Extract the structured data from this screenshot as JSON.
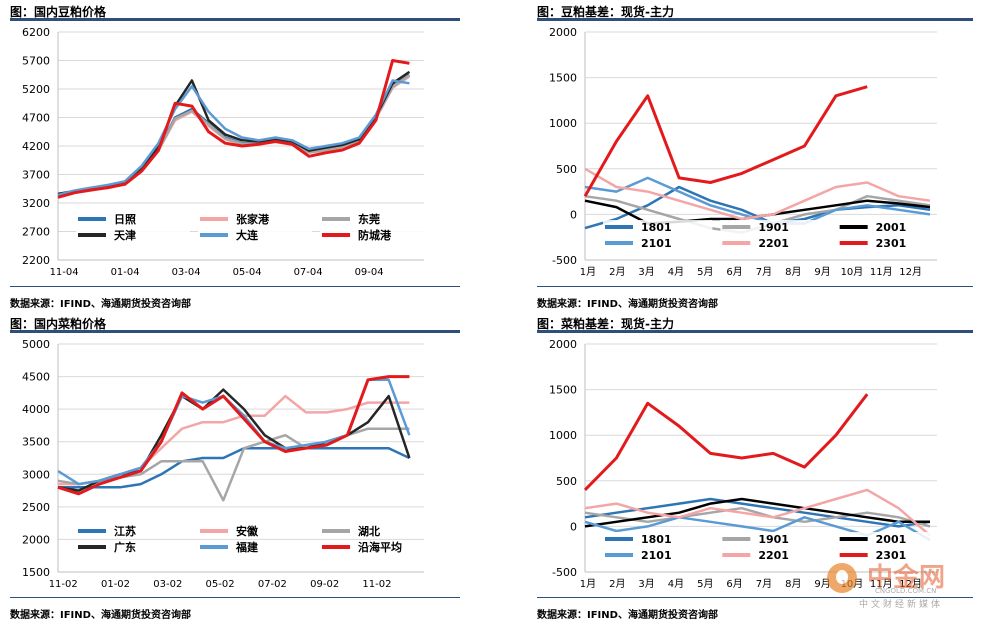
{
  "panels": {
    "p1": {
      "title": "图：国内豆粕价格",
      "source": "数据来源：IFIND、海通期货投资咨询部"
    },
    "p2": {
      "title": "图：豆粕基差：现货-主力",
      "source": "数据来源：IFIND、海通期货投资咨询部"
    },
    "p3": {
      "title": "图：国内菜粕价格",
      "source": "数据来源：IFIND、海通期货投资咨询部"
    },
    "p4": {
      "title": "图：菜粕基差：现货-主力",
      "source": "数据来源：IFIND、海通期货投资咨询部"
    }
  },
  "watermark": {
    "name": "中金网",
    "url": "CNGOLD.COM.CN",
    "sub": "中文财经新媒体"
  },
  "chart_data": [
    {
      "id": "soymeal_price",
      "type": "line",
      "title": "图：国内豆粕价格",
      "ylim": [
        2200,
        6200
      ],
      "yticks": [
        2200,
        2700,
        3200,
        3700,
        4200,
        4700,
        5200,
        5700,
        6200
      ],
      "xticks": [
        "11-04",
        "01-04",
        "03-04",
        "05-04",
        "07-04",
        "09-04"
      ],
      "grid": true,
      "legend": "bottom",
      "series": [
        {
          "name": "日照",
          "color": "#2e75b6",
          "values": [
            3350,
            3400,
            3450,
            3500,
            3550,
            3800,
            4150,
            4700,
            4850,
            4600,
            4350,
            4250,
            4250,
            4300,
            4250,
            4100,
            4150,
            4200,
            4300,
            4700,
            5250,
            5450
          ]
        },
        {
          "name": "张家港",
          "color": "#f4a6a6",
          "values": [
            3300,
            3380,
            3420,
            3480,
            3520,
            3780,
            4120,
            4650,
            4800,
            4550,
            4320,
            4220,
            4230,
            4270,
            4220,
            4080,
            4120,
            4180,
            4280,
            4680,
            5220,
            5420
          ]
        },
        {
          "name": "东莞",
          "color": "#a6a6a6",
          "values": [
            3320,
            3390,
            3440,
            3490,
            3540,
            3790,
            4130,
            4680,
            4820,
            4580,
            4330,
            4240,
            4240,
            4290,
            4240,
            4090,
            4130,
            4190,
            4290,
            4690,
            5240,
            5440
          ]
        },
        {
          "name": "天津",
          "color": "#262626",
          "values": [
            3360,
            3410,
            3460,
            3510,
            3560,
            3820,
            4180,
            4900,
            5350,
            4650,
            4400,
            4300,
            4280,
            4320,
            4280,
            4120,
            4170,
            4220,
            4320,
            4720,
            5300,
            5500
          ]
        },
        {
          "name": "大连",
          "color": "#5b9bd5",
          "values": [
            3340,
            3420,
            3470,
            3520,
            3580,
            3850,
            4250,
            4850,
            5250,
            4800,
            4500,
            4350,
            4300,
            4350,
            4300,
            4150,
            4200,
            4250,
            4350,
            4750,
            5350,
            5300
          ]
        },
        {
          "name": "防城港",
          "color": "#e31a1c",
          "values": [
            3300,
            3380,
            3430,
            3470,
            3530,
            3760,
            4120,
            4950,
            4900,
            4450,
            4250,
            4200,
            4230,
            4280,
            4230,
            4020,
            4080,
            4130,
            4250,
            4650,
            5700,
            5650
          ]
        }
      ]
    },
    {
      "id": "soymeal_basis",
      "type": "line",
      "title": "图：豆粕基差：现货-主力",
      "ylim": [
        -500,
        2000
      ],
      "yticks": [
        -500,
        0,
        500,
        1000,
        1500,
        2000
      ],
      "xticks": [
        "1月",
        "2月",
        "3月",
        "4月",
        "5月",
        "6月",
        "7月",
        "8月",
        "9月",
        "10月",
        "11月",
        "12月"
      ],
      "grid": true,
      "legend": "bottom",
      "series": [
        {
          "name": "1801",
          "color": "#2e75b6",
          "values": [
            -150,
            -50,
            100,
            300,
            150,
            50,
            -100,
            -50,
            50,
            80,
            100,
            50
          ]
        },
        {
          "name": "1901",
          "color": "#a6a6a6",
          "values": [
            200,
            150,
            50,
            -50,
            -150,
            -200,
            -100,
            0,
            50,
            200,
            150,
            100
          ]
        },
        {
          "name": "2001",
          "color": "#000000",
          "values": [
            150,
            80,
            -100,
            -80,
            -50,
            -50,
            0,
            50,
            100,
            150,
            120,
            80
          ]
        },
        {
          "name": "2101",
          "color": "#5b9bd5",
          "values": [
            300,
            250,
            400,
            250,
            100,
            0,
            -100,
            -100,
            50,
            100,
            50,
            0
          ]
        },
        {
          "name": "2201",
          "color": "#f4a6a6",
          "values": [
            500,
            300,
            250,
            150,
            50,
            -50,
            0,
            150,
            300,
            350,
            200,
            150
          ]
        },
        {
          "name": "2301",
          "color": "#e31a1c",
          "values": [
            200,
            800,
            1300,
            400,
            350,
            450,
            600,
            750,
            1300,
            1400
          ]
        }
      ]
    },
    {
      "id": "rapemeal_price",
      "type": "line",
      "title": "图：国内菜粕价格",
      "ylim": [
        1500,
        5000
      ],
      "yticks": [
        1500,
        2000,
        2500,
        3000,
        3500,
        4000,
        4500,
        5000
      ],
      "xticks": [
        "11-02",
        "01-02",
        "03-02",
        "05-02",
        "07-02",
        "09-02",
        "11-02"
      ],
      "grid": true,
      "legend": "bottom",
      "series": [
        {
          "name": "江苏",
          "color": "#2e75b6",
          "values": [
            2800,
            2800,
            2800,
            2800,
            2850,
            3000,
            3200,
            3250,
            3250,
            3400,
            3400,
            3400,
            3400,
            3400,
            3400,
            3400,
            3400,
            3250
          ]
        },
        {
          "name": "安徽",
          "color": "#f4a6a6",
          "values": [
            2850,
            2850,
            2900,
            3000,
            3100,
            3400,
            3700,
            3800,
            3800,
            3900,
            3900,
            4200,
            3950,
            3950,
            4000,
            4100,
            4100,
            4100
          ]
        },
        {
          "name": "湖北",
          "color": "#a6a6a6",
          "values": [
            2900,
            2850,
            2900,
            2950,
            3000,
            3200,
            3200,
            3200,
            2600,
            3400,
            3500,
            3600,
            3400,
            3500,
            3600,
            3700,
            3700,
            3700
          ]
        },
        {
          "name": "广东",
          "color": "#262626",
          "values": [
            2800,
            2750,
            2900,
            3000,
            3050,
            3600,
            4200,
            4000,
            4300,
            4000,
            3600,
            3400,
            3400,
            3500,
            3600,
            3800,
            4200,
            3250
          ]
        },
        {
          "name": "福建",
          "color": "#5b9bd5",
          "values": [
            3050,
            2850,
            2900,
            3000,
            3100,
            3500,
            4200,
            4100,
            4200,
            3900,
            3500,
            3400,
            3450,
            3500,
            3600,
            4450,
            4450,
            3600
          ]
        },
        {
          "name": "沿海平均",
          "color": "#e31a1c",
          "values": [
            2800,
            2700,
            2850,
            2950,
            3050,
            3500,
            4250,
            4000,
            4200,
            3850,
            3500,
            3350,
            3400,
            3450,
            3600,
            4450,
            4500,
            4500
          ]
        }
      ]
    },
    {
      "id": "rapemeal_basis",
      "type": "line",
      "title": "图：菜粕基差：现货-主力",
      "ylim": [
        -500,
        2000
      ],
      "yticks": [
        -500,
        0,
        500,
        1000,
        1500,
        2000
      ],
      "xticks": [
        "1月",
        "2月",
        "3月",
        "4月",
        "5月",
        "6月",
        "7月",
        "8月",
        "9月",
        "10月",
        "11月",
        "12月"
      ],
      "grid": true,
      "legend": "bottom",
      "series": [
        {
          "name": "1801",
          "color": "#2e75b6",
          "values": [
            100,
            150,
            200,
            250,
            300,
            250,
            200,
            150,
            100,
            50,
            0,
            50
          ]
        },
        {
          "name": "1901",
          "color": "#a6a6a6",
          "values": [
            150,
            100,
            50,
            100,
            150,
            200,
            100,
            50,
            100,
            150,
            100,
            0
          ]
        },
        {
          "name": "2001",
          "color": "#000000",
          "values": [
            0,
            50,
            100,
            150,
            250,
            300,
            250,
            200,
            150,
            100,
            50,
            50
          ]
        },
        {
          "name": "2101",
          "color": "#5b9bd5",
          "values": [
            50,
            -50,
            0,
            100,
            50,
            0,
            -50,
            100,
            0,
            -100,
            50,
            -150
          ]
        },
        {
          "name": "2201",
          "color": "#f4a6a6",
          "values": [
            200,
            250,
            150,
            100,
            200,
            150,
            100,
            200,
            300,
            400,
            200,
            -100
          ]
        },
        {
          "name": "2301",
          "color": "#e31a1c",
          "values": [
            400,
            750,
            1350,
            1100,
            800,
            750,
            800,
            650,
            1000,
            1450
          ]
        }
      ]
    }
  ]
}
